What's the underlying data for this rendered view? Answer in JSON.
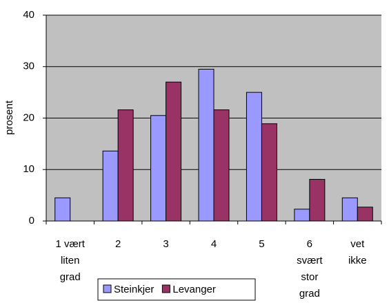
{
  "chart_data": {
    "type": "bar",
    "y_label": "prosent",
    "categories": [
      "1 vært\nliten\ngrad",
      "2",
      "3",
      "4",
      "5",
      "6\nsvært\nstor\ngrad",
      "vet\nikke"
    ],
    "series": [
      {
        "name": "Steinkjer",
        "color": "#9999ff",
        "values": [
          4.5,
          13.6,
          20.5,
          29.5,
          25,
          2.3,
          4.5
        ]
      },
      {
        "name": "Levanger",
        "color": "#993366",
        "values": [
          null,
          21.6,
          27,
          21.6,
          18.9,
          8.1,
          2.7
        ]
      }
    ],
    "ylim": [
      0,
      40
    ],
    "yticks": [
      0,
      10,
      20,
      30,
      40
    ],
    "grid": true,
    "plot_background": "#c0c0c0"
  }
}
